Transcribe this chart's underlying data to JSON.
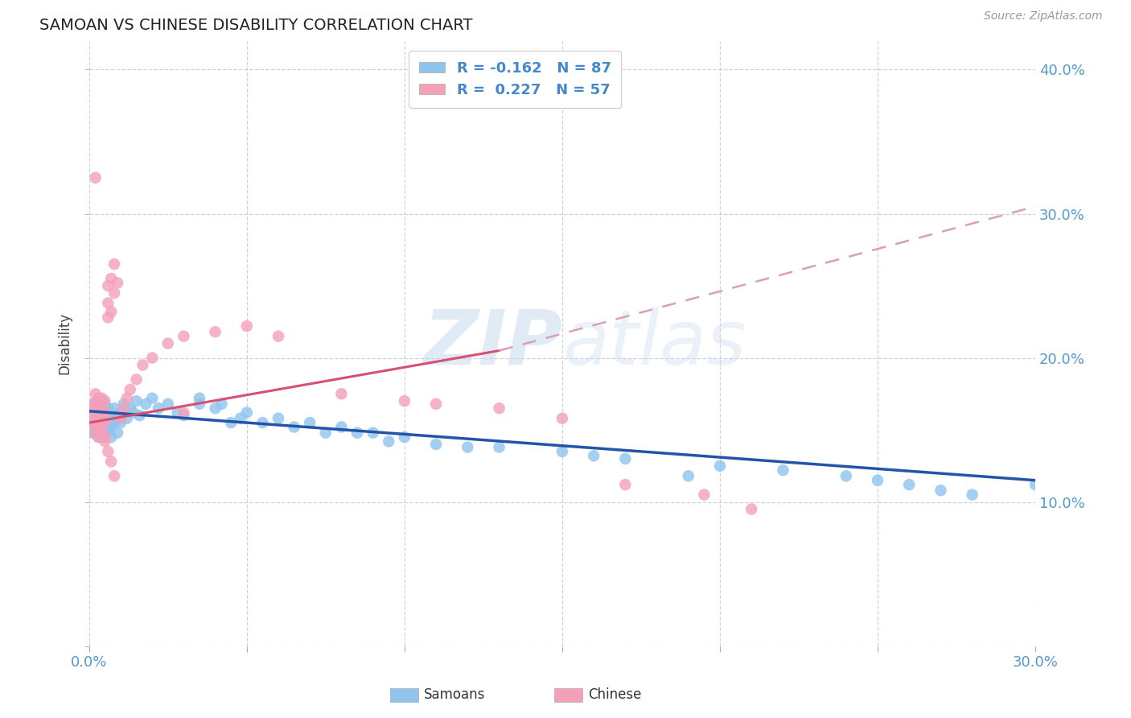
{
  "title": "SAMOAN VS CHINESE DISABILITY CORRELATION CHART",
  "source": "Source: ZipAtlas.com",
  "ylabel": "Disability",
  "xlim": [
    0.0,
    0.3
  ],
  "ylim": [
    0.0,
    0.42
  ],
  "xtick_positions": [
    0.0,
    0.05,
    0.1,
    0.15,
    0.2,
    0.25,
    0.3
  ],
  "xtick_labels": [
    "0.0%",
    "",
    "",
    "",
    "",
    "",
    "30.0%"
  ],
  "ytick_positions": [
    0.0,
    0.1,
    0.2,
    0.3,
    0.4
  ],
  "ytick_labels": [
    "",
    "10.0%",
    "20.0%",
    "30.0%",
    "40.0%"
  ],
  "legend_R_samoan": "-0.162",
  "legend_N_samoan": "87",
  "legend_R_chinese": "0.227",
  "legend_N_chinese": "57",
  "samoan_color": "#8EC4ED",
  "chinese_color": "#F4A0B8",
  "samoan_line_color": "#2255AA",
  "chinese_line_color": "#D85070",
  "chinese_dashed_color": "#D8A0B8",
  "background_color": "#ffffff",
  "grid_color": "#ccccdd",
  "watermark_zip": "ZIP",
  "watermark_atlas": "atlas",
  "samoan_x": [
    0.001,
    0.001,
    0.001,
    0.002,
    0.002,
    0.002,
    0.002,
    0.003,
    0.003,
    0.003,
    0.003,
    0.003,
    0.003,
    0.003,
    0.003,
    0.004,
    0.004,
    0.004,
    0.004,
    0.004,
    0.004,
    0.004,
    0.005,
    0.005,
    0.005,
    0.005,
    0.005,
    0.005,
    0.005,
    0.006,
    0.006,
    0.006,
    0.006,
    0.007,
    0.007,
    0.007,
    0.008,
    0.008,
    0.008,
    0.009,
    0.009,
    0.01,
    0.01,
    0.011,
    0.012,
    0.013,
    0.014,
    0.015,
    0.016,
    0.018,
    0.02,
    0.022,
    0.025,
    0.028,
    0.03,
    0.035,
    0.04,
    0.045,
    0.05,
    0.06,
    0.07,
    0.08,
    0.09,
    0.1,
    0.11,
    0.13,
    0.15,
    0.17,
    0.2,
    0.22,
    0.24,
    0.25,
    0.26,
    0.27,
    0.28,
    0.085,
    0.055,
    0.095,
    0.12,
    0.065,
    0.035,
    0.042,
    0.048,
    0.075,
    0.16,
    0.19,
    0.3
  ],
  "samoan_y": [
    0.155,
    0.162,
    0.148,
    0.168,
    0.155,
    0.162,
    0.148,
    0.16,
    0.155,
    0.165,
    0.148,
    0.152,
    0.158,
    0.145,
    0.17,
    0.162,
    0.155,
    0.148,
    0.165,
    0.152,
    0.158,
    0.145,
    0.162,
    0.155,
    0.168,
    0.148,
    0.155,
    0.16,
    0.145,
    0.162,
    0.155,
    0.15,
    0.165,
    0.158,
    0.152,
    0.145,
    0.165,
    0.155,
    0.16,
    0.158,
    0.148,
    0.162,
    0.155,
    0.168,
    0.158,
    0.165,
    0.162,
    0.17,
    0.16,
    0.168,
    0.172,
    0.165,
    0.168,
    0.162,
    0.16,
    0.168,
    0.165,
    0.155,
    0.162,
    0.158,
    0.155,
    0.152,
    0.148,
    0.145,
    0.14,
    0.138,
    0.135,
    0.13,
    0.125,
    0.122,
    0.118,
    0.115,
    0.112,
    0.108,
    0.105,
    0.148,
    0.155,
    0.142,
    0.138,
    0.152,
    0.172,
    0.168,
    0.158,
    0.148,
    0.132,
    0.118,
    0.112
  ],
  "chinese_x": [
    0.001,
    0.001,
    0.001,
    0.002,
    0.002,
    0.002,
    0.002,
    0.002,
    0.003,
    0.003,
    0.003,
    0.003,
    0.003,
    0.004,
    0.004,
    0.004,
    0.004,
    0.005,
    0.005,
    0.005,
    0.005,
    0.006,
    0.006,
    0.006,
    0.007,
    0.007,
    0.008,
    0.008,
    0.009,
    0.01,
    0.011,
    0.012,
    0.013,
    0.015,
    0.017,
    0.02,
    0.025,
    0.03,
    0.04,
    0.05,
    0.06,
    0.08,
    0.1,
    0.11,
    0.13,
    0.15,
    0.17,
    0.195,
    0.21,
    0.03,
    0.002,
    0.003,
    0.004,
    0.005,
    0.006,
    0.007,
    0.008
  ],
  "chinese_y": [
    0.155,
    0.162,
    0.168,
    0.155,
    0.148,
    0.162,
    0.168,
    0.175,
    0.158,
    0.152,
    0.165,
    0.172,
    0.145,
    0.158,
    0.165,
    0.172,
    0.148,
    0.162,
    0.155,
    0.17,
    0.145,
    0.25,
    0.238,
    0.228,
    0.255,
    0.232,
    0.265,
    0.245,
    0.252,
    0.158,
    0.165,
    0.172,
    0.178,
    0.185,
    0.195,
    0.2,
    0.21,
    0.215,
    0.218,
    0.222,
    0.215,
    0.175,
    0.17,
    0.168,
    0.165,
    0.158,
    0.112,
    0.105,
    0.095,
    0.162,
    0.325,
    0.155,
    0.148,
    0.142,
    0.135,
    0.128,
    0.118
  ]
}
